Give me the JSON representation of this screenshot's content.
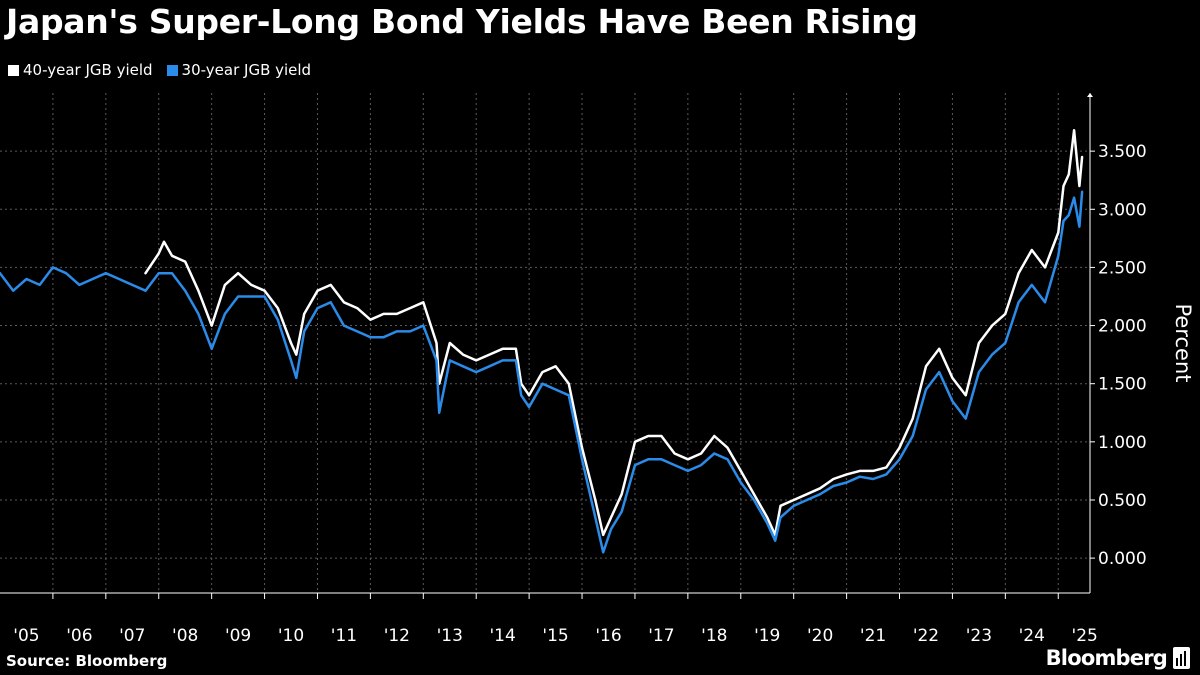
{
  "title": "Japan's Super-Long Bond Yields Have Been Rising",
  "legend": [
    {
      "label": "40-year JGB yield",
      "color": "#ffffff"
    },
    {
      "label": "30-year JGB yield",
      "color": "#2b8be8"
    }
  ],
  "source": "Source: Bloomberg",
  "brand": "Bloomberg",
  "brand_icon": "bloomberg-chart-icon",
  "chart_data": {
    "type": "line",
    "title": "Japan's Super-Long Bond Yields Have Been Rising",
    "ylabel": "Percent",
    "xlabel": "",
    "ylim": [
      -0.3,
      4.0
    ],
    "yticks": [
      0,
      0.5,
      1.0,
      1.5,
      2.0,
      2.5,
      3.0,
      3.5
    ],
    "ytick_labels": [
      "0.000",
      "0.500",
      "1.000",
      "1.500",
      "2.000",
      "2.500",
      "3.000",
      "3.500"
    ],
    "xlim": [
      2005.0,
      2025.6
    ],
    "xtick_labels": [
      "'05",
      "'06",
      "'07",
      "'08",
      "'09",
      "'10",
      "'11",
      "'12",
      "'13",
      "'14",
      "'15",
      "'16",
      "'17",
      "'18",
      "'19",
      "'20",
      "'21",
      "'22",
      "'23",
      "'24",
      "'25"
    ],
    "grid": true,
    "legend_position": "top-left",
    "series": [
      {
        "name": "40-year JGB yield",
        "color": "#ffffff",
        "x": [
          2007.75,
          2008.0,
          2008.1,
          2008.25,
          2008.5,
          2008.75,
          2009.0,
          2009.25,
          2009.5,
          2009.75,
          2010.0,
          2010.25,
          2010.5,
          2010.6,
          2010.75,
          2011.0,
          2011.25,
          2011.5,
          2011.75,
          2012.0,
          2012.25,
          2012.5,
          2012.75,
          2013.0,
          2013.25,
          2013.3,
          2013.5,
          2013.75,
          2014.0,
          2014.25,
          2014.5,
          2014.75,
          2014.85,
          2015.0,
          2015.25,
          2015.5,
          2015.75,
          2016.0,
          2016.25,
          2016.4,
          2016.55,
          2016.75,
          2017.0,
          2017.25,
          2017.5,
          2017.75,
          2018.0,
          2018.25,
          2018.5,
          2018.75,
          2019.0,
          2019.25,
          2019.5,
          2019.65,
          2019.75,
          2020.0,
          2020.25,
          2020.5,
          2020.75,
          2021.0,
          2021.25,
          2021.5,
          2021.75,
          2022.0,
          2022.25,
          2022.5,
          2022.75,
          2023.0,
          2023.25,
          2023.5,
          2023.75,
          2024.0,
          2024.25,
          2024.5,
          2024.75,
          2025.0,
          2025.1,
          2025.2,
          2025.3,
          2025.4,
          2025.45
        ],
        "values": [
          2.45,
          2.62,
          2.72,
          2.6,
          2.55,
          2.3,
          2.0,
          2.35,
          2.45,
          2.35,
          2.3,
          2.15,
          1.85,
          1.75,
          2.1,
          2.3,
          2.35,
          2.2,
          2.15,
          2.05,
          2.1,
          2.1,
          2.15,
          2.2,
          1.85,
          1.5,
          1.85,
          1.75,
          1.7,
          1.75,
          1.8,
          1.8,
          1.5,
          1.4,
          1.6,
          1.65,
          1.5,
          0.95,
          0.5,
          0.2,
          0.35,
          0.55,
          1.0,
          1.05,
          1.05,
          0.9,
          0.85,
          0.9,
          1.05,
          0.95,
          0.75,
          0.55,
          0.35,
          0.2,
          0.45,
          0.5,
          0.55,
          0.6,
          0.68,
          0.72,
          0.75,
          0.75,
          0.78,
          0.95,
          1.2,
          1.65,
          1.8,
          1.55,
          1.4,
          1.85,
          2.0,
          2.1,
          2.45,
          2.65,
          2.5,
          2.8,
          3.2,
          3.3,
          3.68,
          3.2,
          3.45
        ]
      },
      {
        "name": "30-year JGB yield",
        "color": "#2b8be8",
        "x": [
          2005.0,
          2005.25,
          2005.5,
          2005.75,
          2006.0,
          2006.25,
          2006.5,
          2006.75,
          2007.0,
          2007.25,
          2007.5,
          2007.75,
          2008.0,
          2008.25,
          2008.5,
          2008.75,
          2009.0,
          2009.25,
          2009.5,
          2009.75,
          2010.0,
          2010.25,
          2010.5,
          2010.6,
          2010.75,
          2011.0,
          2011.25,
          2011.5,
          2011.75,
          2012.0,
          2012.25,
          2012.5,
          2012.75,
          2013.0,
          2013.25,
          2013.3,
          2013.5,
          2013.75,
          2014.0,
          2014.25,
          2014.5,
          2014.75,
          2014.85,
          2015.0,
          2015.25,
          2015.5,
          2015.75,
          2016.0,
          2016.25,
          2016.4,
          2016.55,
          2016.75,
          2017.0,
          2017.25,
          2017.5,
          2017.75,
          2018.0,
          2018.25,
          2018.5,
          2018.75,
          2019.0,
          2019.25,
          2019.5,
          2019.65,
          2019.75,
          2020.0,
          2020.25,
          2020.5,
          2020.75,
          2021.0,
          2021.25,
          2021.5,
          2021.75,
          2022.0,
          2022.25,
          2022.5,
          2022.75,
          2023.0,
          2023.25,
          2023.5,
          2023.75,
          2024.0,
          2024.25,
          2024.5,
          2024.75,
          2025.0,
          2025.1,
          2025.2,
          2025.3,
          2025.4,
          2025.45
        ],
        "values": [
          2.45,
          2.3,
          2.4,
          2.35,
          2.5,
          2.45,
          2.35,
          2.4,
          2.45,
          2.4,
          2.35,
          2.3,
          2.45,
          2.45,
          2.3,
          2.1,
          1.8,
          2.1,
          2.25,
          2.25,
          2.25,
          2.05,
          1.7,
          1.55,
          1.95,
          2.15,
          2.2,
          2.0,
          1.95,
          1.9,
          1.9,
          1.95,
          1.95,
          2.0,
          1.7,
          1.25,
          1.7,
          1.65,
          1.6,
          1.65,
          1.7,
          1.7,
          1.4,
          1.3,
          1.5,
          1.45,
          1.4,
          0.85,
          0.35,
          0.05,
          0.25,
          0.4,
          0.8,
          0.85,
          0.85,
          0.8,
          0.75,
          0.8,
          0.9,
          0.85,
          0.65,
          0.5,
          0.3,
          0.15,
          0.35,
          0.45,
          0.5,
          0.55,
          0.62,
          0.65,
          0.7,
          0.68,
          0.72,
          0.85,
          1.05,
          1.45,
          1.6,
          1.35,
          1.2,
          1.6,
          1.75,
          1.85,
          2.2,
          2.35,
          2.2,
          2.6,
          2.9,
          2.95,
          3.1,
          2.85,
          3.15
        ]
      }
    ]
  }
}
